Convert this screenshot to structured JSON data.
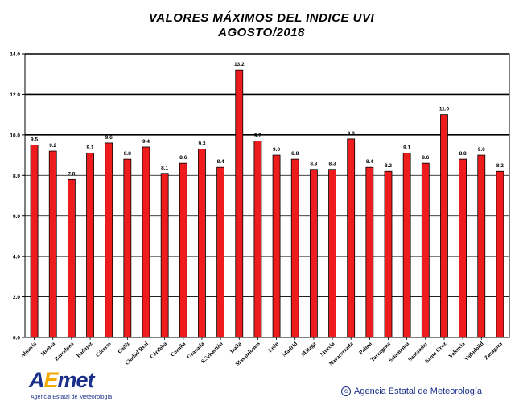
{
  "chart_data": {
    "type": "bar",
    "title": "VALORES MÁXIMOS DEL INDICE UVI",
    "subtitle": "AGOSTO/2018",
    "xlabel": "",
    "ylabel": "",
    "ylim": [
      0,
      14
    ],
    "yticks": [
      "0.0",
      "2.0",
      "4.0",
      "6.0",
      "8.0",
      "10.0",
      "12.0",
      "14.0"
    ],
    "grid": "horizontal",
    "bar_color": "#ee1c1c",
    "categories": [
      "Almería",
      "Huelva",
      "Barcelona",
      "Badajoz",
      "Cáceres",
      "Cádiz",
      "Ciudad Real",
      "Córdoba",
      "Coruña",
      "Granada",
      "S.Sebastián",
      "Izaña",
      "Mas palomas",
      "León",
      "Madrid",
      "Málaga",
      "Murcia",
      "Navacerrada",
      "Palma",
      "Tarragona",
      "Salamanca",
      "Santander",
      "Santa Cruz",
      "Valencia",
      "Valladolid",
      "Zaragoza"
    ],
    "values": [
      9.5,
      9.2,
      7.8,
      9.1,
      9.6,
      8.8,
      9.4,
      8.1,
      8.6,
      9.3,
      8.4,
      13.2,
      9.7,
      9.0,
      8.8,
      8.3,
      8.3,
      9.8,
      8.4,
      8.2,
      9.1,
      8.6,
      11.0,
      8.8,
      9.0,
      8.2
    ],
    "value_labels": [
      "9.5",
      "9.2",
      "7.8",
      "9.1",
      "9.6",
      "8.8",
      "9.4",
      "8.1",
      "8.6",
      "9.3",
      "8.4",
      "13.2",
      "9.7",
      "9.0",
      "8.8",
      "8.3",
      "8.3",
      "9.8",
      "8.4",
      "8.2",
      "9.1",
      "8.6",
      "11.0",
      "8.8",
      "9.0",
      "8.2"
    ]
  },
  "logo": {
    "mark_a": "A",
    "mark_e": "E",
    "mark_rest": "met",
    "subtitle": "Agencia Estatal de Meteorología"
  },
  "copyright": {
    "symbol": "c",
    "text": "Agencia Estatal de Meteorología"
  },
  "icons": {
    "logo": "aemet-logo-icon",
    "copyright": "copyright-icon"
  }
}
